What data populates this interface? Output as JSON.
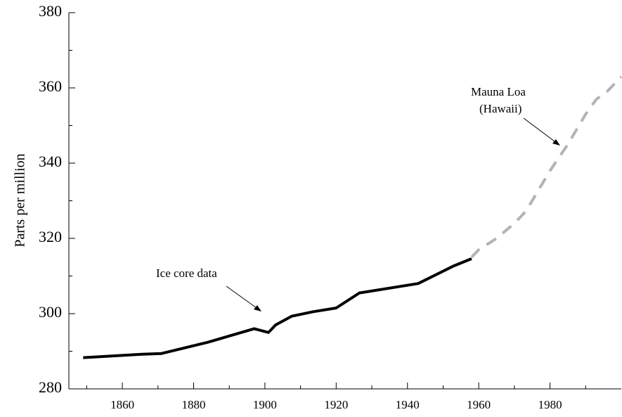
{
  "chart_data": {
    "type": "line",
    "y_label": "Parts per million",
    "annotations": [
      {
        "text": [
          "Ice core data"
        ]
      },
      {
        "text": [
          "Mauna Loa",
          "(Hawaii)"
        ]
      }
    ],
    "series": [
      {
        "name": "Ice core data",
        "color": "#000000",
        "dash": false,
        "x": [
          1849,
          1865.5,
          1871,
          1884,
          1897,
          1901,
          1903,
          1907.5,
          1913.5,
          1920,
          1926.5,
          1943,
          1953,
          1958
        ],
        "values": [
          288.3,
          289.2,
          289.4,
          292.4,
          296,
          295,
          297,
          299.3,
          300.5,
          301.5,
          305.5,
          308,
          312.7,
          314.6
        ]
      },
      {
        "name": "Mauna Loa (Hawaii)",
        "color": "#b3b3b3",
        "dash": true,
        "x": [
          1958,
          1960,
          1965,
          1970,
          1973,
          1975,
          1980,
          1985,
          1990,
          1993,
          1996,
          2000
        ],
        "values": [
          315,
          317,
          320,
          324,
          327,
          330,
          338,
          345,
          353,
          357,
          359,
          363
        ]
      }
    ],
    "xlim": [
      1845,
      2000
    ],
    "ylim": [
      280,
      380
    ],
    "xticks": [
      1860,
      1880,
      1900,
      1920,
      1940,
      1960,
      1980
    ],
    "yticks": [
      280,
      300,
      320,
      340,
      360,
      380
    ],
    "xminorticks": [
      1850,
      1870,
      1890,
      1910,
      1930,
      1950,
      1970,
      1990
    ],
    "yminorticks": [
      290,
      310,
      330,
      350,
      370
    ]
  }
}
